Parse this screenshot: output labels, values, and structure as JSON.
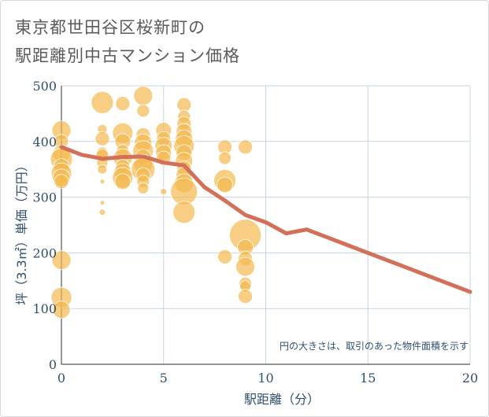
{
  "header": {
    "title_line1": "東京都世田谷区桜新町の",
    "title_line2": "駅距離別中古マンション価格"
  },
  "colors": {
    "bubble": "#f3b94e",
    "line": "#d2705a",
    "grid": "#c6d6e4",
    "axis_text": "#2f4f6f"
  },
  "chart_data": {
    "type": "scatter",
    "title": "東京都世田谷区桜新町の駅距離別中古マンション価格",
    "xlabel": "駅距離（分）",
    "ylabel": "坪（3.3㎡）単価（万円）",
    "xlim": [
      0,
      20
    ],
    "ylim": [
      0,
      500
    ],
    "x_ticks": [
      0,
      5,
      10,
      15,
      20
    ],
    "y_ticks": [
      0,
      100,
      200,
      300,
      400,
      500
    ],
    "grid": true,
    "note": "円の大きさは、取引のあった物件面積を示す",
    "bubbles": [
      {
        "x": 0,
        "y": 420,
        "s": 12
      },
      {
        "x": 0,
        "y": 400,
        "s": 9
      },
      {
        "x": 0,
        "y": 378,
        "s": 11
      },
      {
        "x": 0,
        "y": 368,
        "s": 14
      },
      {
        "x": 0,
        "y": 355,
        "s": 10
      },
      {
        "x": 0,
        "y": 343,
        "s": 13
      },
      {
        "x": 0,
        "y": 335,
        "s": 11
      },
      {
        "x": 0,
        "y": 328,
        "s": 9
      },
      {
        "x": 0,
        "y": 187,
        "s": 12
      },
      {
        "x": 0,
        "y": 120,
        "s": 13
      },
      {
        "x": 0,
        "y": 98,
        "s": 11
      },
      {
        "x": 2,
        "y": 470,
        "s": 14
      },
      {
        "x": 2,
        "y": 422,
        "s": 6
      },
      {
        "x": 2,
        "y": 405,
        "s": 9
      },
      {
        "x": 2,
        "y": 380,
        "s": 7
      },
      {
        "x": 2,
        "y": 375,
        "s": 8
      },
      {
        "x": 2,
        "y": 362,
        "s": 7
      },
      {
        "x": 2,
        "y": 350,
        "s": 6
      },
      {
        "x": 2,
        "y": 328,
        "s": 3
      },
      {
        "x": 2,
        "y": 290,
        "s": 3
      },
      {
        "x": 2,
        "y": 273,
        "s": 4
      },
      {
        "x": 3,
        "y": 468,
        "s": 9
      },
      {
        "x": 3,
        "y": 415,
        "s": 13
      },
      {
        "x": 3,
        "y": 400,
        "s": 10
      },
      {
        "x": 3,
        "y": 383,
        "s": 8
      },
      {
        "x": 3,
        "y": 370,
        "s": 12
      },
      {
        "x": 3,
        "y": 355,
        "s": 9
      },
      {
        "x": 3,
        "y": 345,
        "s": 11
      },
      {
        "x": 3,
        "y": 335,
        "s": 13
      },
      {
        "x": 3,
        "y": 328,
        "s": 10
      },
      {
        "x": 4,
        "y": 482,
        "s": 12
      },
      {
        "x": 4,
        "y": 455,
        "s": 8
      },
      {
        "x": 4,
        "y": 412,
        "s": 9
      },
      {
        "x": 4,
        "y": 398,
        "s": 11
      },
      {
        "x": 4,
        "y": 383,
        "s": 13
      },
      {
        "x": 4,
        "y": 372,
        "s": 10
      },
      {
        "x": 4,
        "y": 360,
        "s": 12
      },
      {
        "x": 4,
        "y": 350,
        "s": 15
      },
      {
        "x": 4,
        "y": 340,
        "s": 9
      },
      {
        "x": 4,
        "y": 328,
        "s": 8
      },
      {
        "x": 4,
        "y": 316,
        "s": 7
      },
      {
        "x": 5,
        "y": 472,
        "s": 1
      },
      {
        "x": 5,
        "y": 420,
        "s": 10
      },
      {
        "x": 5,
        "y": 405,
        "s": 9
      },
      {
        "x": 5,
        "y": 392,
        "s": 11
      },
      {
        "x": 5,
        "y": 380,
        "s": 10
      },
      {
        "x": 5,
        "y": 370,
        "s": 9
      },
      {
        "x": 5,
        "y": 310,
        "s": 4
      },
      {
        "x": 6,
        "y": 466,
        "s": 9
      },
      {
        "x": 6,
        "y": 445,
        "s": 8
      },
      {
        "x": 6,
        "y": 432,
        "s": 9
      },
      {
        "x": 6,
        "y": 418,
        "s": 10
      },
      {
        "x": 6,
        "y": 405,
        "s": 11
      },
      {
        "x": 6,
        "y": 392,
        "s": 13
      },
      {
        "x": 6,
        "y": 380,
        "s": 10
      },
      {
        "x": 6,
        "y": 365,
        "s": 11
      },
      {
        "x": 6,
        "y": 352,
        "s": 9
      },
      {
        "x": 6,
        "y": 340,
        "s": 10
      },
      {
        "x": 6,
        "y": 325,
        "s": 12
      },
      {
        "x": 6,
        "y": 310,
        "s": 17
      },
      {
        "x": 6,
        "y": 273,
        "s": 14
      },
      {
        "x": 8,
        "y": 390,
        "s": 9
      },
      {
        "x": 8,
        "y": 370,
        "s": 8
      },
      {
        "x": 8,
        "y": 330,
        "s": 14
      },
      {
        "x": 8,
        "y": 322,
        "s": 10
      },
      {
        "x": 8,
        "y": 193,
        "s": 9
      },
      {
        "x": 9,
        "y": 390,
        "s": 9
      },
      {
        "x": 9,
        "y": 232,
        "s": 20
      },
      {
        "x": 9,
        "y": 210,
        "s": 10
      },
      {
        "x": 9,
        "y": 190,
        "s": 9
      },
      {
        "x": 9,
        "y": 175,
        "s": 12
      },
      {
        "x": 9,
        "y": 145,
        "s": 8
      },
      {
        "x": 9,
        "y": 140,
        "s": 7
      },
      {
        "x": 9,
        "y": 122,
        "s": 9
      }
    ],
    "series": [
      {
        "type": "line",
        "x": [
          0,
          1,
          2,
          3,
          4,
          5,
          6,
          7,
          8,
          9,
          10,
          11,
          12,
          13,
          14,
          15,
          16,
          17,
          18,
          19,
          20
        ],
        "values": [
          390,
          376,
          369,
          372,
          373,
          362,
          357,
          318,
          294,
          268,
          255,
          235,
          242,
          228,
          214,
          200,
          186,
          172,
          158,
          144,
          130
        ]
      }
    ]
  }
}
